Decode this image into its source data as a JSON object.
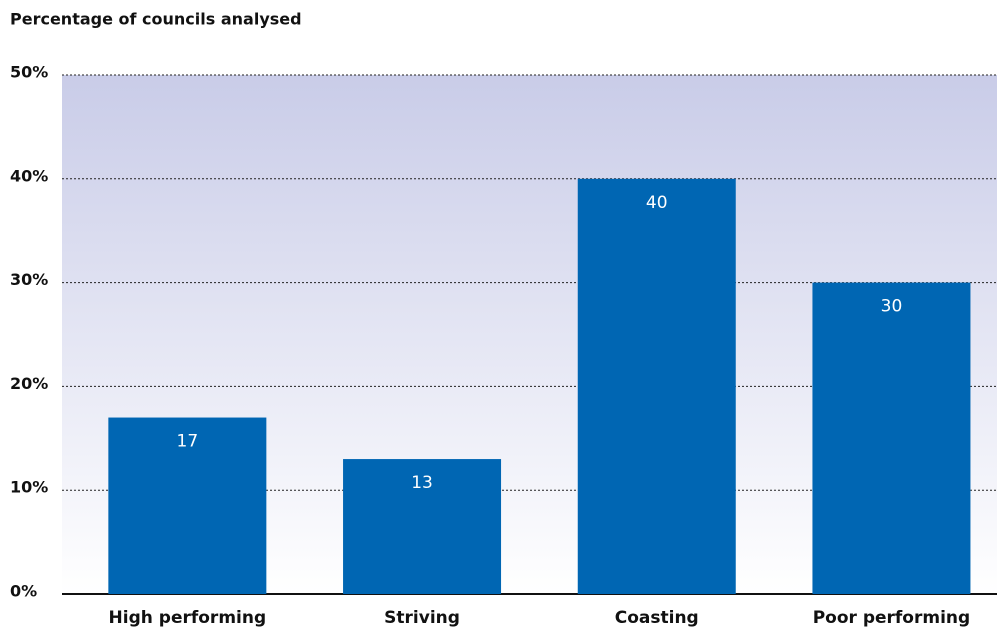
{
  "chart_data": {
    "type": "bar",
    "title": "Percentage of councils analysed",
    "categories": [
      "High performing",
      "Striving",
      "Coasting",
      "Poor performing"
    ],
    "values": [
      17,
      13,
      40,
      30
    ],
    "color": "#0066b3",
    "ylim": [
      0,
      50
    ],
    "yticks": [
      {
        "value": 0,
        "label": "0%"
      },
      {
        "value": 10,
        "label": "10%"
      },
      {
        "value": 20,
        "label": "20%"
      },
      {
        "value": 30,
        "label": "30%"
      },
      {
        "value": 40,
        "label": "40%"
      },
      {
        "value": 50,
        "label": "50%"
      }
    ],
    "grid": true
  }
}
